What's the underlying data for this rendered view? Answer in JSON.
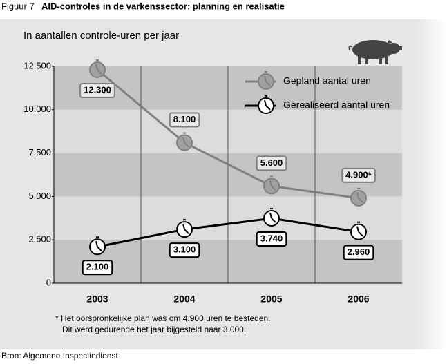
{
  "chart_data": {
    "type": "line",
    "figure_label": "Figuur 7",
    "title": "AID-controles in de varkenssector: planning en realisatie",
    "subtitle": "In aantallen controle-uren per jaar",
    "categories": [
      "2003",
      "2004",
      "2005",
      "2006"
    ],
    "series": [
      {
        "name": "Gepland aantal uren",
        "color": "#808080",
        "values": [
          12300,
          8100,
          5600,
          4900
        ],
        "value_labels": [
          "12.300",
          "8.100",
          "5.600",
          "4.900*"
        ]
      },
      {
        "name": "Gerealiseerd aantal uren",
        "color": "#000000",
        "values": [
          2100,
          3100,
          3740,
          2960
        ],
        "value_labels": [
          "2.100",
          "3.100",
          "3.740",
          "2.960"
        ]
      }
    ],
    "ylim": [
      0,
      12500
    ],
    "yticks": [
      0,
      {
        "value": 2500,
        "label": "2.500"
      },
      {
        "value": 5000,
        "label": "5.000"
      },
      {
        "value": 7500,
        "label": "7.500"
      },
      {
        "value": 10000,
        "label": "10.000"
      },
      {
        "value": 12500,
        "label": "12.500"
      }
    ],
    "notes": [
      "* Het oorspronkelijke plan was om 4.900 uren te besteden.",
      "Dit werd gedurende het jaar bijgesteld naar 3.000."
    ],
    "source": "Bron: Algemene Inspectiedienst"
  }
}
